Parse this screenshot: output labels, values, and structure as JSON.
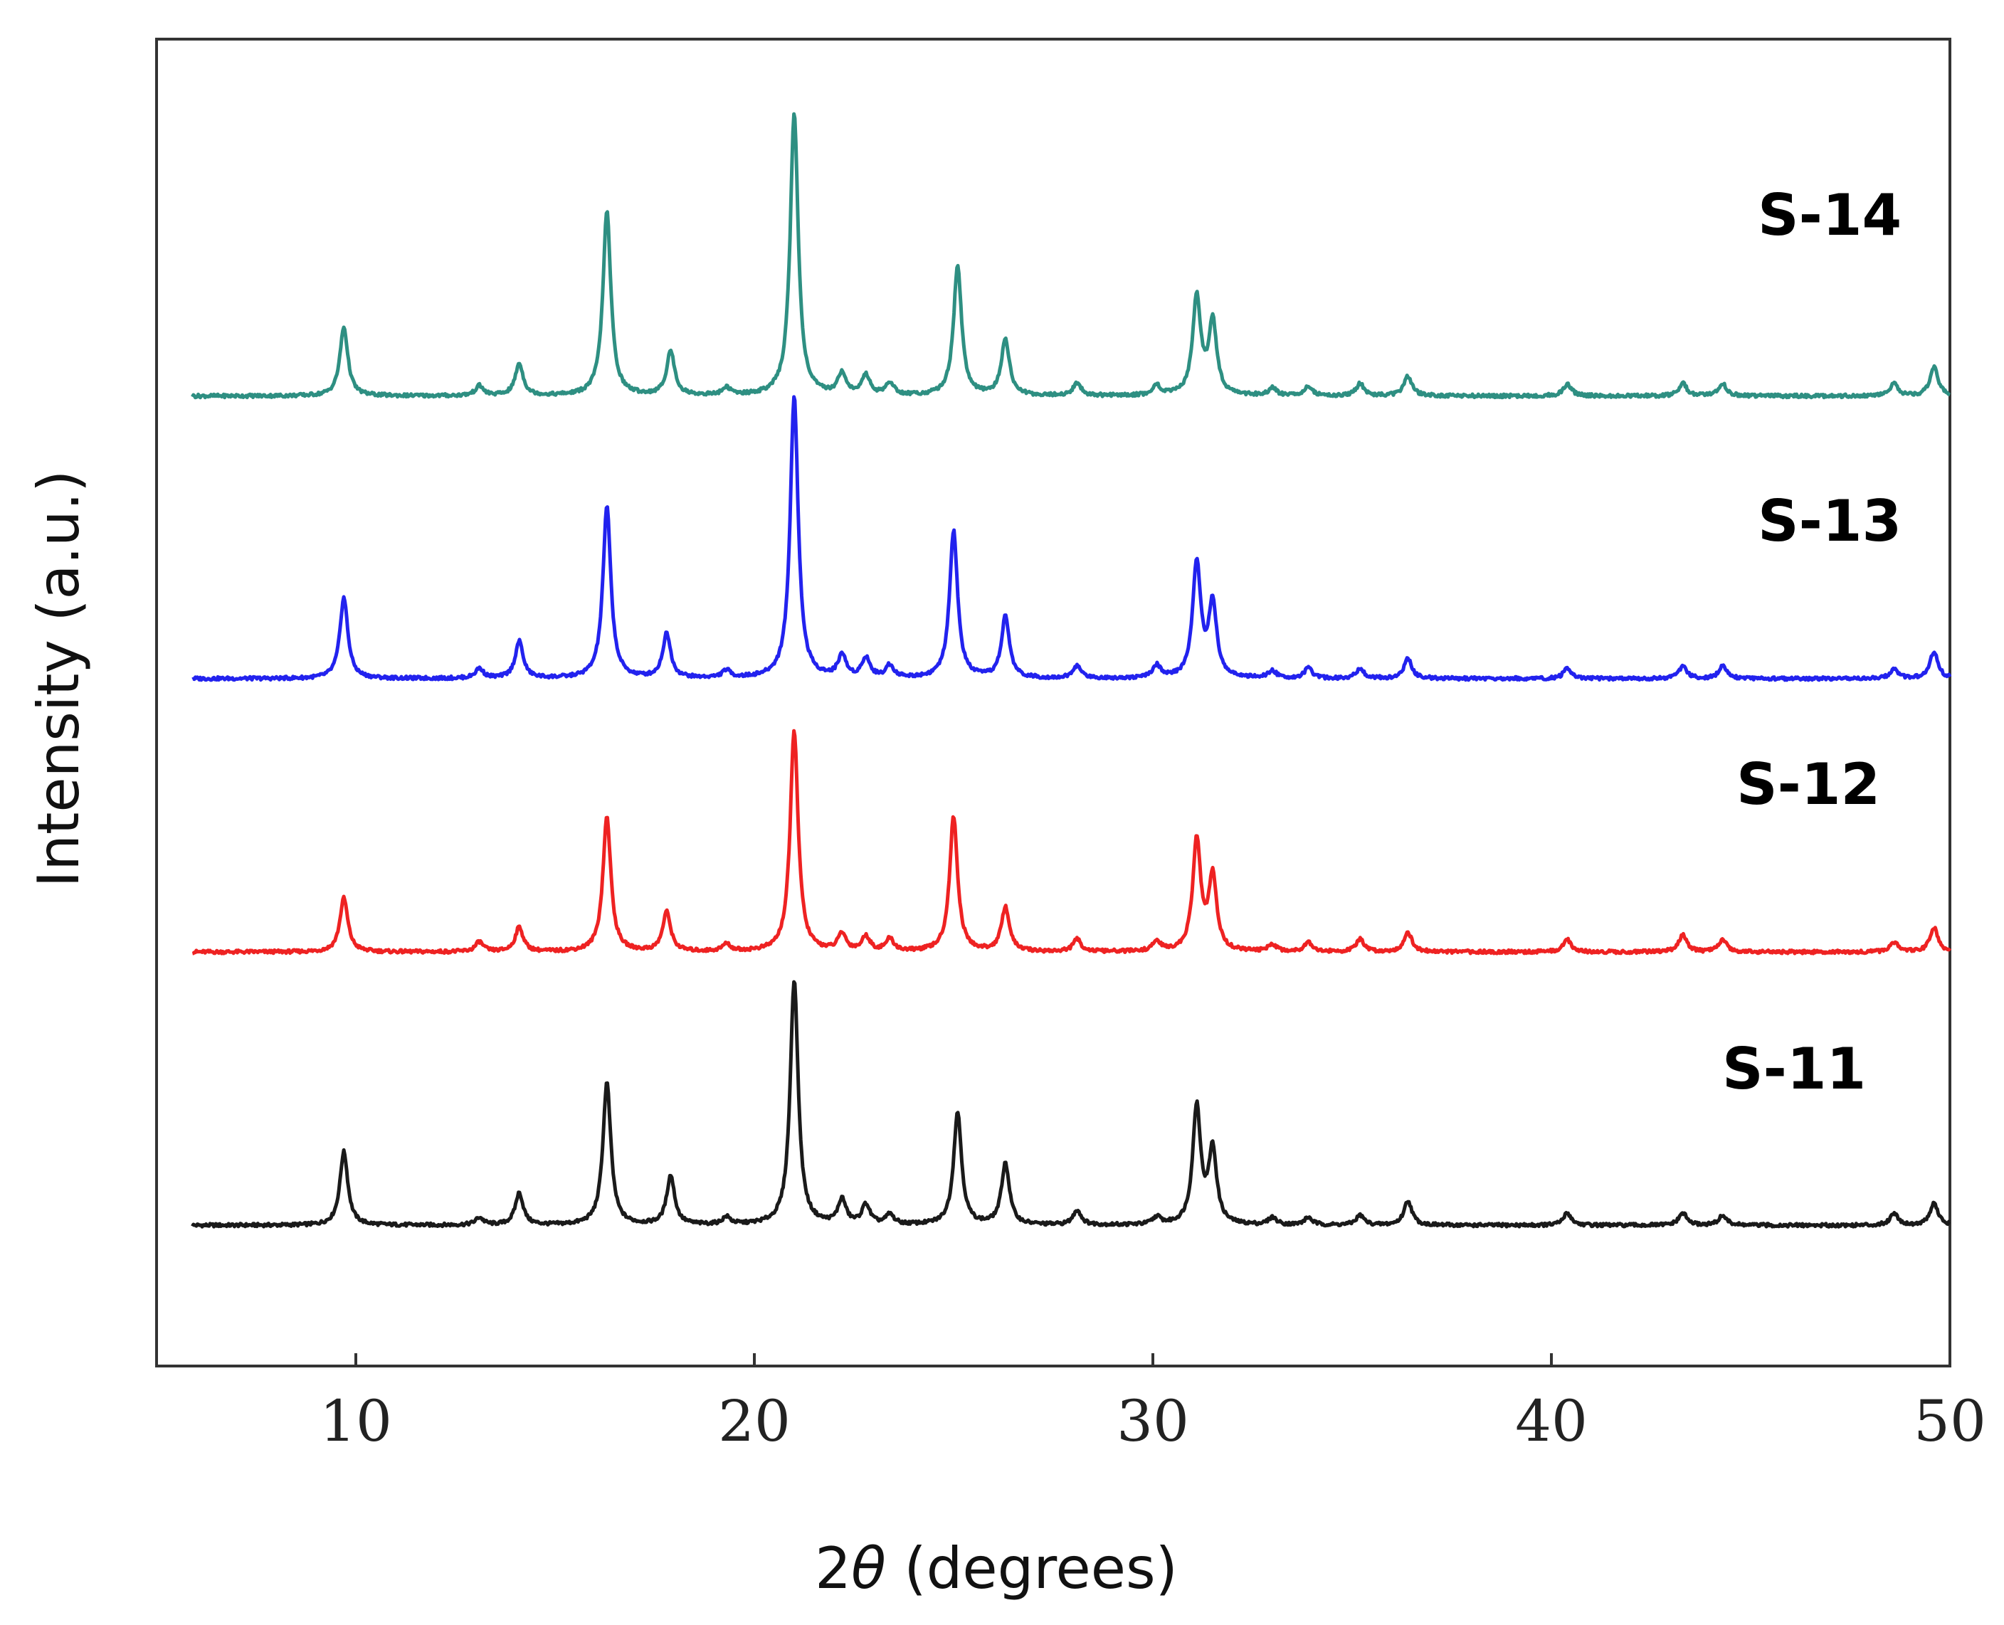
{
  "chart_data": {
    "type": "line",
    "xlabel": "2θ (degrees)",
    "xlabel_prefix": "2",
    "xlabel_symbol": "θ",
    "xlabel_suffix": " (degrees)",
    "ylabel": "Intensity (a.u.)",
    "xlim": [
      5,
      50
    ],
    "ylim": [
      0,
      1
    ],
    "x_ticks": [
      10,
      20,
      30,
      40,
      50
    ],
    "grid": false,
    "legend": "none",
    "curve_note_peaks": "peaks as [2theta, relative height] for each stacked pattern",
    "series": [
      {
        "name": "S-11",
        "color": "#1a1a1a",
        "offset": 0.106,
        "scale": 0.185,
        "peaks": [
          [
            9.7,
            0.3
          ],
          [
            13.1,
            0.03
          ],
          [
            14.1,
            0.13
          ],
          [
            16.3,
            0.58
          ],
          [
            17.9,
            0.2
          ],
          [
            19.3,
            0.03
          ],
          [
            21.0,
            1.0
          ],
          [
            22.2,
            0.1
          ],
          [
            22.8,
            0.08
          ],
          [
            23.4,
            0.04
          ],
          [
            25.1,
            0.46
          ],
          [
            26.3,
            0.25
          ],
          [
            28.1,
            0.06
          ],
          [
            30.1,
            0.03
          ],
          [
            31.1,
            0.48
          ],
          [
            31.5,
            0.3
          ],
          [
            33.0,
            0.03
          ],
          [
            33.9,
            0.03
          ],
          [
            35.2,
            0.04
          ],
          [
            36.4,
            0.1
          ],
          [
            40.4,
            0.05
          ],
          [
            43.3,
            0.05
          ],
          [
            44.3,
            0.04
          ],
          [
            48.6,
            0.05
          ],
          [
            49.6,
            0.09
          ]
        ]
      },
      {
        "name": "S-12",
        "color": "#ee2222",
        "offset": 0.312,
        "scale": 0.185,
        "peaks": [
          [
            9.7,
            0.22
          ],
          [
            13.1,
            0.04
          ],
          [
            14.1,
            0.1
          ],
          [
            16.3,
            0.55
          ],
          [
            17.8,
            0.16
          ],
          [
            19.3,
            0.03
          ],
          [
            21.0,
            0.9
          ],
          [
            22.2,
            0.07
          ],
          [
            22.8,
            0.06
          ],
          [
            23.4,
            0.05
          ],
          [
            25.0,
            0.55
          ],
          [
            26.3,
            0.18
          ],
          [
            28.1,
            0.05
          ],
          [
            30.1,
            0.04
          ],
          [
            31.1,
            0.45
          ],
          [
            31.5,
            0.3
          ],
          [
            33.0,
            0.03
          ],
          [
            33.9,
            0.04
          ],
          [
            35.2,
            0.05
          ],
          [
            36.4,
            0.08
          ],
          [
            40.4,
            0.05
          ],
          [
            43.3,
            0.07
          ],
          [
            44.3,
            0.05
          ],
          [
            48.6,
            0.04
          ],
          [
            49.6,
            0.1
          ]
        ]
      },
      {
        "name": "S-13",
        "color": "#2222ee",
        "offset": 0.518,
        "scale": 0.185,
        "peaks": [
          [
            9.7,
            0.33
          ],
          [
            13.1,
            0.04
          ],
          [
            14.1,
            0.15
          ],
          [
            16.3,
            0.7
          ],
          [
            17.8,
            0.18
          ],
          [
            19.3,
            0.03
          ],
          [
            21.0,
            1.15
          ],
          [
            22.2,
            0.09
          ],
          [
            22.8,
            0.08
          ],
          [
            23.4,
            0.05
          ],
          [
            25.0,
            0.6
          ],
          [
            26.3,
            0.25
          ],
          [
            28.1,
            0.05
          ],
          [
            30.1,
            0.05
          ],
          [
            31.1,
            0.47
          ],
          [
            31.5,
            0.3
          ],
          [
            33.0,
            0.03
          ],
          [
            33.9,
            0.04
          ],
          [
            35.2,
            0.04
          ],
          [
            36.4,
            0.08
          ],
          [
            40.4,
            0.04
          ],
          [
            43.3,
            0.05
          ],
          [
            44.3,
            0.05
          ],
          [
            48.6,
            0.04
          ],
          [
            49.6,
            0.11
          ]
        ]
      },
      {
        "name": "S-14",
        "color": "#2e8f82",
        "offset": 0.731,
        "scale": 0.185,
        "peaks": [
          [
            9.7,
            0.28
          ],
          [
            13.1,
            0.04
          ],
          [
            14.1,
            0.13
          ],
          [
            16.3,
            0.75
          ],
          [
            17.9,
            0.18
          ],
          [
            19.3,
            0.03
          ],
          [
            21.0,
            1.15
          ],
          [
            22.2,
            0.09
          ],
          [
            22.8,
            0.08
          ],
          [
            23.4,
            0.05
          ],
          [
            25.1,
            0.53
          ],
          [
            26.3,
            0.23
          ],
          [
            28.1,
            0.05
          ],
          [
            30.1,
            0.04
          ],
          [
            31.1,
            0.4
          ],
          [
            31.5,
            0.3
          ],
          [
            33.0,
            0.03
          ],
          [
            33.9,
            0.04
          ],
          [
            35.2,
            0.05
          ],
          [
            36.4,
            0.08
          ],
          [
            40.4,
            0.05
          ],
          [
            43.3,
            0.05
          ],
          [
            44.3,
            0.05
          ],
          [
            48.6,
            0.05
          ],
          [
            49.6,
            0.12
          ]
        ]
      }
    ]
  }
}
